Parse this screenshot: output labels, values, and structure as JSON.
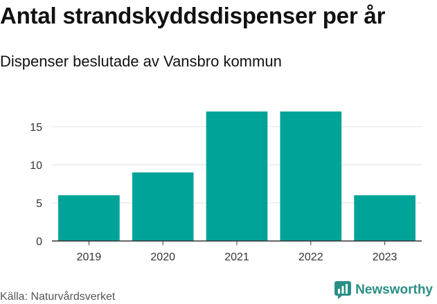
{
  "title": "Antal strandskyddsdispenser per år",
  "subtitle": "Dispenser beslutade av Vansbro kommun",
  "source": "Källa: Naturvårdsverket",
  "brand": "Newsworthy",
  "colors": {
    "bar": "#00a398",
    "grid": "#e0e0e0",
    "axis": "#333333",
    "brand": "#2b8f86"
  },
  "chart_data": {
    "type": "bar",
    "categories": [
      "2019",
      "2020",
      "2021",
      "2022",
      "2023"
    ],
    "values": [
      6,
      9,
      17,
      17,
      6
    ],
    "ylim": [
      0,
      18
    ],
    "yticks": [
      0,
      5,
      10,
      15
    ],
    "grid": true,
    "xlabel": "",
    "ylabel": ""
  }
}
